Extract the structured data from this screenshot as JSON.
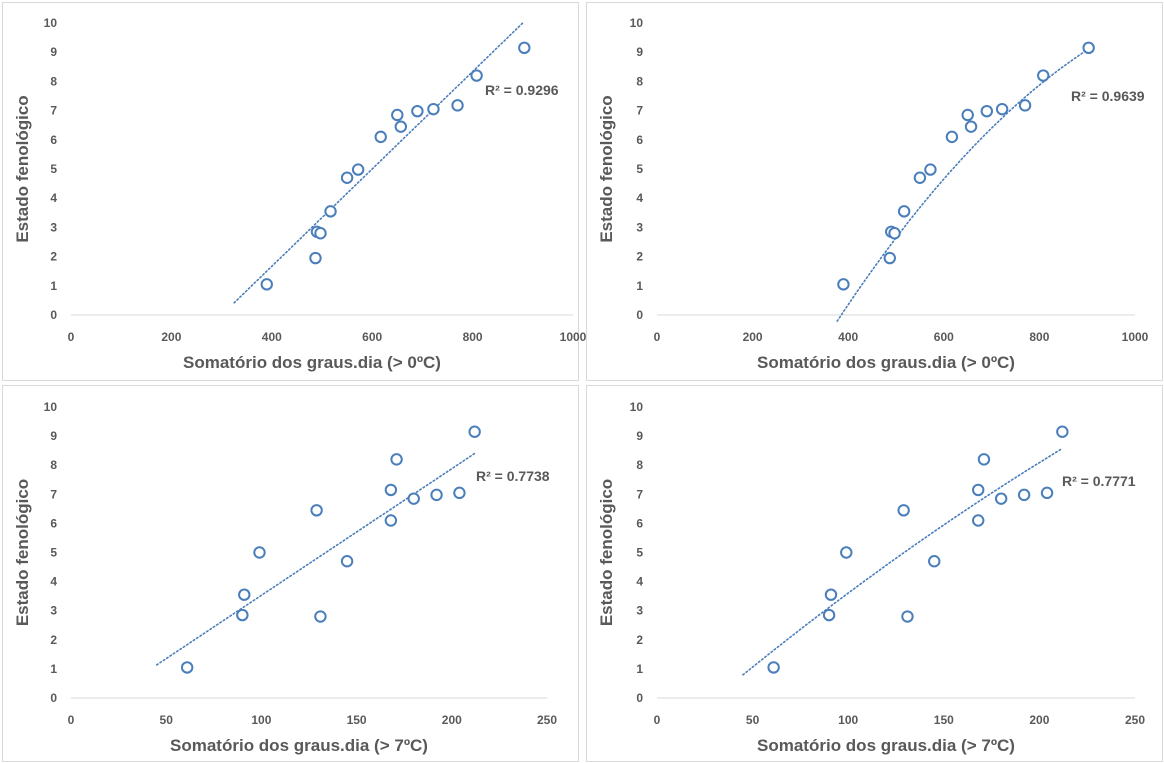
{
  "chart_data": [
    {
      "type": "scatter",
      "xlabel": "Somatório dos graus.dia (> 0ºC)",
      "ylabel": "Estado fenológico",
      "xlim": [
        0,
        1000
      ],
      "ylim": [
        0,
        10
      ],
      "xticks": [
        0,
        200,
        400,
        600,
        800,
        1000
      ],
      "yticks": [
        0,
        1,
        2,
        3,
        4,
        5,
        6,
        7,
        8,
        9,
        10
      ],
      "points": [
        [
          390,
          1.05
        ],
        [
          487,
          1.95
        ],
        [
          490,
          2.85
        ],
        [
          497,
          2.8
        ],
        [
          517,
          3.55
        ],
        [
          550,
          4.7
        ],
        [
          572,
          4.98
        ],
        [
          617,
          6.1
        ],
        [
          650,
          6.85
        ],
        [
          657,
          6.45
        ],
        [
          690,
          6.98
        ],
        [
          722,
          7.05
        ],
        [
          770,
          7.18
        ],
        [
          808,
          8.2
        ],
        [
          903,
          9.15
        ]
      ],
      "trendline": {
        "type": "linear",
        "x_range": [
          325,
          900
        ],
        "coef": [
          -5.0,
          0.01667
        ]
      },
      "r2_label": "R² = 0.9296",
      "grid": false,
      "series_color": "#4a7ebb"
    },
    {
      "type": "scatter",
      "xlabel": "Somatório dos graus.dia (> 0ºC)",
      "ylabel": "Estado fenológico",
      "xlim": [
        0,
        1000
      ],
      "ylim": [
        0,
        10
      ],
      "xticks": [
        0,
        200,
        400,
        600,
        800,
        1000
      ],
      "yticks": [
        0,
        1,
        2,
        3,
        4,
        5,
        6,
        7,
        8,
        9,
        10
      ],
      "points": [
        [
          390,
          1.05
        ],
        [
          487,
          1.95
        ],
        [
          490,
          2.85
        ],
        [
          497,
          2.8
        ],
        [
          517,
          3.55
        ],
        [
          550,
          4.7
        ],
        [
          572,
          4.98
        ],
        [
          617,
          6.1
        ],
        [
          650,
          6.85
        ],
        [
          657,
          6.45
        ],
        [
          690,
          6.98
        ],
        [
          722,
          7.05
        ],
        [
          770,
          7.18
        ],
        [
          808,
          8.2
        ],
        [
          903,
          9.15
        ]
      ],
      "trendline": {
        "type": "polynomial",
        "x_range": [
          377,
          900
        ],
        "coef": [
          -11.5,
          0.03505,
          -1.354e-05
        ]
      },
      "r2_label": "R² = 0.9639",
      "grid": false,
      "series_color": "#4a7ebb"
    },
    {
      "type": "scatter",
      "xlabel": "Somatório dos graus.dia (> 7ºC)",
      "ylabel": "Estado fenológico",
      "xlim": [
        0,
        250
      ],
      "ylim": [
        0,
        10
      ],
      "xticks": [
        0,
        50,
        100,
        150,
        200,
        250
      ],
      "yticks": [
        0,
        1,
        2,
        3,
        4,
        5,
        6,
        7,
        8,
        9,
        10
      ],
      "points": [
        [
          61,
          1.05
        ],
        [
          90,
          2.85
        ],
        [
          91,
          3.55
        ],
        [
          99,
          5.0
        ],
        [
          129,
          6.45
        ],
        [
          131,
          2.8
        ],
        [
          145,
          4.7
        ],
        [
          168,
          7.15
        ],
        [
          168,
          6.1
        ],
        [
          171,
          8.2
        ],
        [
          180,
          6.85
        ],
        [
          192,
          6.98
        ],
        [
          204,
          7.05
        ],
        [
          212,
          9.15
        ]
      ],
      "trendline": {
        "type": "linear",
        "x_range": [
          45,
          212
        ],
        "coef": [
          -0.82,
          0.0435
        ]
      },
      "r2_label": "R² = 0.7738",
      "grid": false,
      "series_color": "#4a7ebb"
    },
    {
      "type": "scatter",
      "xlabel": "Somatório dos graus.dia (> 7ºC)",
      "ylabel": "Estado fenológico",
      "xlim": [
        0,
        250
      ],
      "ylim": [
        0,
        10
      ],
      "xticks": [
        0,
        50,
        100,
        150,
        200,
        250
      ],
      "yticks": [
        0,
        1,
        2,
        3,
        4,
        5,
        6,
        7,
        8,
        9,
        10
      ],
      "points": [
        [
          61,
          1.05
        ],
        [
          90,
          2.85
        ],
        [
          91,
          3.55
        ],
        [
          99,
          5.0
        ],
        [
          129,
          6.45
        ],
        [
          131,
          2.8
        ],
        [
          145,
          4.7
        ],
        [
          168,
          7.15
        ],
        [
          168,
          6.1
        ],
        [
          171,
          8.2
        ],
        [
          180,
          6.85
        ],
        [
          192,
          6.98
        ],
        [
          204,
          7.05
        ],
        [
          212,
          9.15
        ]
      ],
      "trendline": {
        "type": "polynomial",
        "x_range": [
          45,
          212
        ],
        "coef": [
          -1.68,
          0.05685,
          -4e-05
        ]
      },
      "r2_label": "R² = 0.7771",
      "grid": false,
      "series_color": "#4a7ebb"
    }
  ]
}
